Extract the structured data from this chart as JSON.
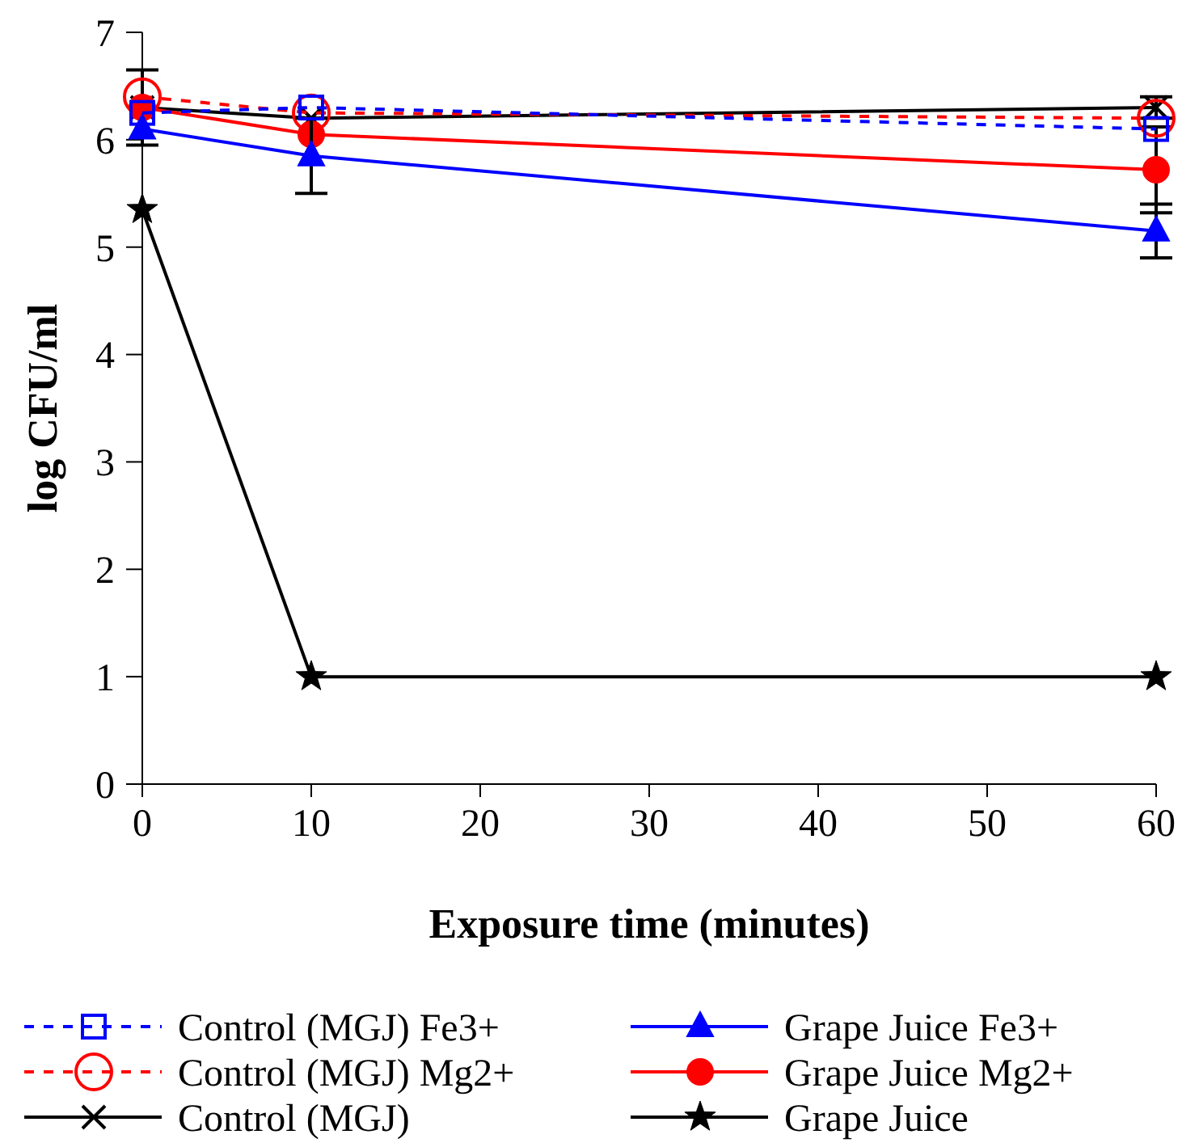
{
  "chart_data": {
    "type": "line",
    "xlabel": "Exposure time (minutes)",
    "ylabel": "log CFU/ml",
    "x": [
      0,
      10,
      60
    ],
    "xlim": [
      0,
      60
    ],
    "xticks": [
      0,
      10,
      20,
      30,
      40,
      50,
      60
    ],
    "ylim": [
      0,
      7
    ],
    "yticks": [
      0,
      1,
      2,
      3,
      4,
      5,
      6,
      7
    ],
    "grid": false,
    "legend": "bottom",
    "series": [
      {
        "name": "Control (MGJ) Fe3+",
        "color": "#0000ff",
        "values": [
          6.25,
          6.3,
          6.1
        ],
        "marker": "square",
        "line_style": "dashed"
      },
      {
        "name": "Grape Juice Fe3+",
        "color": "#0000ff",
        "values": [
          6.1,
          5.85,
          5.15
        ],
        "marker": "triangle",
        "line_style": "solid",
        "errors": [
          null,
          0.35,
          0.25
        ]
      },
      {
        "name": "Control (MGJ) Mg2+",
        "color": "#ff0000",
        "values": [
          6.4,
          6.25,
          6.2
        ],
        "marker": "circle",
        "line_style": "dashed"
      },
      {
        "name": "Grape Juice Mg2+",
        "color": "#ff0000",
        "values": [
          6.3,
          6.05,
          5.72
        ],
        "marker": "circle",
        "line_style": "solid",
        "errors": [
          null,
          null,
          0.4
        ]
      },
      {
        "name": "Control (MGJ)",
        "color": "#000000",
        "values": [
          6.3,
          6.2,
          6.3
        ],
        "marker": "cross",
        "line_style": "solid",
        "errors": [
          0.35,
          null,
          0.1
        ]
      },
      {
        "name": "Grape Juice",
        "color": "#000000",
        "values": [
          5.35,
          1,
          1
        ],
        "marker": "star",
        "line_style": "solid"
      }
    ]
  }
}
